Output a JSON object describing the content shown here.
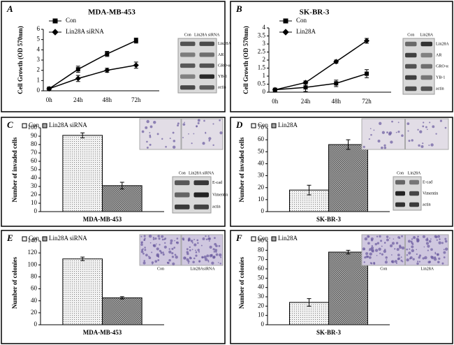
{
  "chart_data": [
    {
      "type": "line",
      "panel": "A",
      "title": "MDA-MB-453",
      "ylabel": "Cell Growth (OD 570nm)",
      "categories": [
        "0h",
        "24h",
        "48h",
        "72h"
      ],
      "ylim": [
        0,
        6
      ],
      "yticks": [
        0,
        1,
        2,
        3,
        4,
        5,
        6
      ],
      "series": [
        {
          "name": "Con",
          "color": "#000000",
          "marker": "square",
          "values": [
            0.2,
            2.1,
            3.6,
            4.9
          ],
          "errors": [
            0.05,
            0.3,
            0.25,
            0.25
          ]
        },
        {
          "name": "Lin28A siRNA",
          "color": "#000000",
          "marker": "diamond",
          "values": [
            0.2,
            1.2,
            2.0,
            2.5
          ],
          "errors": [
            0.05,
            0.3,
            0.2,
            0.3
          ]
        }
      ],
      "blot": {
        "lanes": [
          "Con",
          "Lin28A siRNA"
        ],
        "rows": [
          "Lin28A",
          "AR",
          "GRO-α",
          "YB-1",
          "actin"
        ]
      }
    },
    {
      "type": "line",
      "panel": "B",
      "title": "SK-BR-3",
      "ylabel": "Cell Growth (OD 570nm)",
      "categories": [
        "0h",
        "24h",
        "48h",
        "72h"
      ],
      "ylim": [
        0,
        4
      ],
      "yticks": [
        0,
        0.5,
        1,
        1.5,
        2,
        2.5,
        3,
        3.5,
        4
      ],
      "series": [
        {
          "name": "Con",
          "color": "#000000",
          "marker": "square",
          "values": [
            0.15,
            0.3,
            0.55,
            1.15
          ],
          "errors": [
            0.05,
            0.25,
            0.2,
            0.25
          ]
        },
        {
          "name": "Lin28A",
          "color": "#000000",
          "marker": "diamond",
          "values": [
            0.15,
            0.6,
            1.9,
            3.2
          ],
          "errors": [
            0.05,
            0.1,
            0.1,
            0.15
          ]
        }
      ],
      "blot": {
        "lanes": [
          "Con",
          "Lin28A"
        ],
        "rows": [
          "Lin28A",
          "AR",
          "GRO-α",
          "YB-1",
          "actin"
        ]
      }
    },
    {
      "type": "bar",
      "panel": "C",
      "ylabel": "Number of invaded cells",
      "categories": [
        "MDA-MB-453"
      ],
      "ylim": [
        0,
        100
      ],
      "yticks": [
        0,
        10,
        20,
        30,
        40,
        50,
        60,
        70,
        80,
        90,
        100
      ],
      "series": [
        {
          "name": "Con",
          "color": "#f2f2f2",
          "values": [
            91
          ],
          "errors": [
            3
          ]
        },
        {
          "name": "Lin28A siRNA",
          "color": "#a6a6a6",
          "values": [
            31
          ],
          "errors": [
            4
          ]
        }
      ],
      "blot": {
        "lanes": [
          "Con",
          "Lin28A siRNA"
        ],
        "rows": [
          "E-cad",
          "Vimentin",
          "actin"
        ]
      }
    },
    {
      "type": "bar",
      "panel": "D",
      "ylabel": "Number of invaded cells",
      "categories": [
        "SK-BR-3"
      ],
      "ylim": [
        0,
        70
      ],
      "yticks": [
        0,
        10,
        20,
        30,
        40,
        50,
        60,
        70
      ],
      "series": [
        {
          "name": "Con",
          "color": "#f2f2f2",
          "values": [
            18
          ],
          "errors": [
            4
          ]
        },
        {
          "name": "Lin28A",
          "color": "#a6a6a6",
          "values": [
            56
          ],
          "errors": [
            4
          ]
        }
      ],
      "blot": {
        "lanes": [
          "Con",
          "Lin28A"
        ],
        "rows": [
          "E-cad",
          "Vimentin",
          "actin"
        ]
      }
    },
    {
      "type": "bar",
      "panel": "E",
      "ylabel": "Number of colonies",
      "categories": [
        "MDA-MB-453"
      ],
      "ylim": [
        0,
        140
      ],
      "yticks": [
        0,
        20,
        40,
        60,
        80,
        100,
        120,
        140
      ],
      "series": [
        {
          "name": "Con",
          "color": "#f2f2f2",
          "values": [
            110
          ],
          "errors": [
            3
          ]
        },
        {
          "name": "Lin28A siRNA",
          "color": "#a6a6a6",
          "values": [
            45
          ],
          "errors": [
            2
          ]
        }
      ],
      "micrograph_labels": [
        "Con",
        "Lin28AsiRNA"
      ]
    },
    {
      "type": "bar",
      "panel": "F",
      "ylabel": "Number of colonies",
      "categories": [
        "SK-BR-3"
      ],
      "ylim": [
        0,
        90
      ],
      "yticks": [
        0,
        10,
        20,
        30,
        40,
        50,
        60,
        70,
        80,
        90
      ],
      "series": [
        {
          "name": "Con",
          "color": "#f2f2f2",
          "values": [
            24
          ],
          "errors": [
            4
          ]
        },
        {
          "name": "Lin28A",
          "color": "#a6a6a6",
          "values": [
            78
          ],
          "errors": [
            2
          ]
        }
      ],
      "micrograph_labels": [
        "Con",
        "Lin28A"
      ]
    }
  ]
}
